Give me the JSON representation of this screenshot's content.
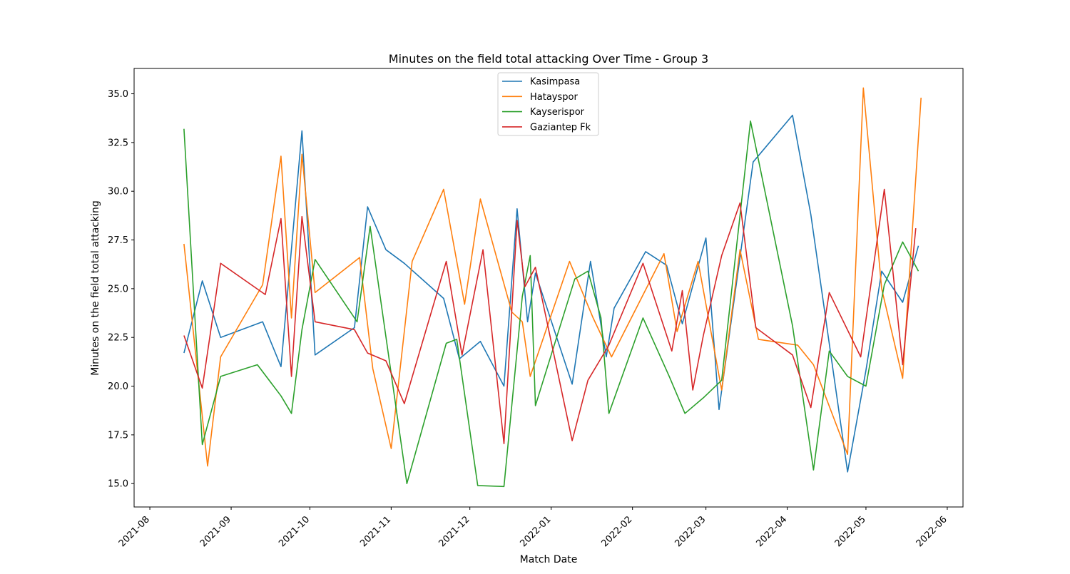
{
  "chart_data": {
    "type": "line",
    "title": "Minutes on the field total attacking Over Time - Group 3",
    "xlabel": "Match Date",
    "ylabel": "Minutes on the field total attacking",
    "x_ticks": [
      "2021-08",
      "2021-09",
      "2021-10",
      "2021-11",
      "2021-12",
      "2022-01",
      "2022-02",
      "2022-03",
      "2022-04",
      "2022-05",
      "2022-06"
    ],
    "y_ticks": [
      "15.0",
      "17.5",
      "20.0",
      "22.5",
      "25.0",
      "27.5",
      "30.0",
      "32.5",
      "35.0"
    ],
    "xlim": [
      "2021-07-26",
      "2022-06-07"
    ],
    "ylim": [
      13.8,
      36.3
    ],
    "grid": false,
    "legend_position": "upper center",
    "series": [
      {
        "name": "Kasimpasa",
        "color": "#1f77b4",
        "x": [
          "2021-08-14",
          "2021-08-21",
          "2021-08-28",
          "2021-09-13",
          "2021-09-20",
          "2021-09-28",
          "2021-10-03",
          "2021-10-18",
          "2021-10-23",
          "2021-10-30",
          "2021-11-06",
          "2021-11-21",
          "2021-11-27",
          "2021-12-05",
          "2021-12-14",
          "2021-12-19",
          "2021-12-23",
          "2021-12-26",
          "2022-01-09",
          "2022-01-16",
          "2022-01-22",
          "2022-01-25",
          "2022-02-06",
          "2022-02-14",
          "2022-02-20",
          "2022-03-01",
          "2022-03-06",
          "2022-03-19",
          "2022-04-03",
          "2022-04-10",
          "2022-04-24",
          "2022-05-01",
          "2022-05-07",
          "2022-05-15",
          "2022-05-21"
        ],
        "values": [
          21.7,
          25.4,
          22.5,
          23.3,
          21.0,
          33.1,
          21.6,
          23.0,
          29.2,
          27.0,
          26.3,
          24.5,
          21.4,
          22.3,
          20.0,
          29.1,
          23.3,
          25.8,
          20.1,
          26.4,
          21.5,
          24.0,
          26.9,
          26.2,
          23.2,
          27.6,
          18.8,
          31.5,
          33.9,
          28.8,
          15.6,
          20.8,
          25.9,
          24.3,
          27.2
        ]
      },
      {
        "name": "Hatayspor",
        "color": "#ff7f0e",
        "x": [
          "2021-08-14",
          "2021-08-23",
          "2021-08-28",
          "2021-09-13",
          "2021-09-20",
          "2021-09-24",
          "2021-09-28",
          "2021-10-03",
          "2021-10-20",
          "2021-10-25",
          "2021-11-01",
          "2021-11-09",
          "2021-11-21",
          "2021-11-29",
          "2021-12-05",
          "2021-12-17",
          "2021-12-21",
          "2021-12-24",
          "2022-01-08",
          "2022-01-17",
          "2022-01-24",
          "2022-02-13",
          "2022-02-18",
          "2022-02-26",
          "2022-03-07",
          "2022-03-14",
          "2022-03-21",
          "2022-04-05",
          "2022-04-11",
          "2022-04-24",
          "2022-04-30",
          "2022-05-07",
          "2022-05-15",
          "2022-05-22"
        ],
        "values": [
          27.3,
          15.9,
          21.5,
          25.2,
          31.8,
          23.5,
          31.9,
          24.8,
          26.6,
          20.9,
          16.8,
          26.4,
          30.1,
          24.2,
          29.6,
          23.8,
          23.3,
          20.5,
          26.4,
          23.5,
          21.5,
          26.8,
          22.8,
          26.4,
          19.8,
          27.0,
          22.4,
          22.1,
          21.1,
          16.5,
          35.3,
          25.0,
          20.4,
          34.8
        ]
      },
      {
        "name": "Kayserispor",
        "color": "#2ca02c",
        "x": [
          "2021-08-14",
          "2021-08-21",
          "2021-08-28",
          "2021-09-11",
          "2021-09-20",
          "2021-09-24",
          "2021-09-28",
          "2021-10-03",
          "2021-10-19",
          "2021-10-24",
          "2021-11-07",
          "2021-11-22",
          "2021-11-26",
          "2021-12-04",
          "2021-12-14",
          "2021-12-21",
          "2021-12-24",
          "2021-12-26",
          "2022-01-10",
          "2022-01-15",
          "2022-01-20",
          "2022-01-23",
          "2022-02-05",
          "2022-02-15",
          "2022-02-21",
          "2022-02-28",
          "2022-03-07",
          "2022-03-18",
          "2022-04-03",
          "2022-04-11",
          "2022-04-17",
          "2022-04-24",
          "2022-05-01",
          "2022-05-08",
          "2022-05-15",
          "2022-05-21"
        ],
        "values": [
          33.2,
          17.0,
          20.5,
          21.1,
          19.5,
          18.6,
          22.9,
          26.5,
          23.3,
          28.2,
          15.0,
          22.2,
          22.4,
          14.9,
          14.85,
          24.6,
          26.7,
          19.0,
          25.5,
          25.9,
          23.5,
          18.6,
          23.5,
          20.5,
          18.6,
          19.4,
          20.3,
          33.6,
          23.1,
          15.7,
          21.8,
          20.5,
          20.0,
          25.2,
          27.4,
          25.9
        ]
      },
      {
        "name": "Gaziantep Fk",
        "color": "#d62728",
        "x": [
          "2021-08-14",
          "2021-08-21",
          "2021-08-28",
          "2021-09-14",
          "2021-09-20",
          "2021-09-24",
          "2021-09-28",
          "2021-10-03",
          "2021-10-18",
          "2021-10-23",
          "2021-10-30",
          "2021-11-06",
          "2021-11-22",
          "2021-11-28",
          "2021-12-06",
          "2021-12-14",
          "2021-12-19",
          "2021-12-22",
          "2021-12-26",
          "2022-01-09",
          "2022-01-15",
          "2022-01-23",
          "2022-02-05",
          "2022-02-16",
          "2022-02-20",
          "2022-02-24",
          "2022-02-28",
          "2022-03-07",
          "2022-03-14",
          "2022-03-20",
          "2022-04-03",
          "2022-04-10",
          "2022-04-17",
          "2022-04-29",
          "2022-05-08",
          "2022-05-15",
          "2022-05-20"
        ],
        "values": [
          22.6,
          19.9,
          26.3,
          24.7,
          28.6,
          20.5,
          28.7,
          23.3,
          22.9,
          21.7,
          21.3,
          19.1,
          26.4,
          21.6,
          27.0,
          17.05,
          28.5,
          25.1,
          26.1,
          17.2,
          20.3,
          22.1,
          26.3,
          21.8,
          24.9,
          19.8,
          22.6,
          26.7,
          29.4,
          23.0,
          21.6,
          18.9,
          24.8,
          21.5,
          30.1,
          21.1,
          28.1
        ]
      }
    ]
  }
}
